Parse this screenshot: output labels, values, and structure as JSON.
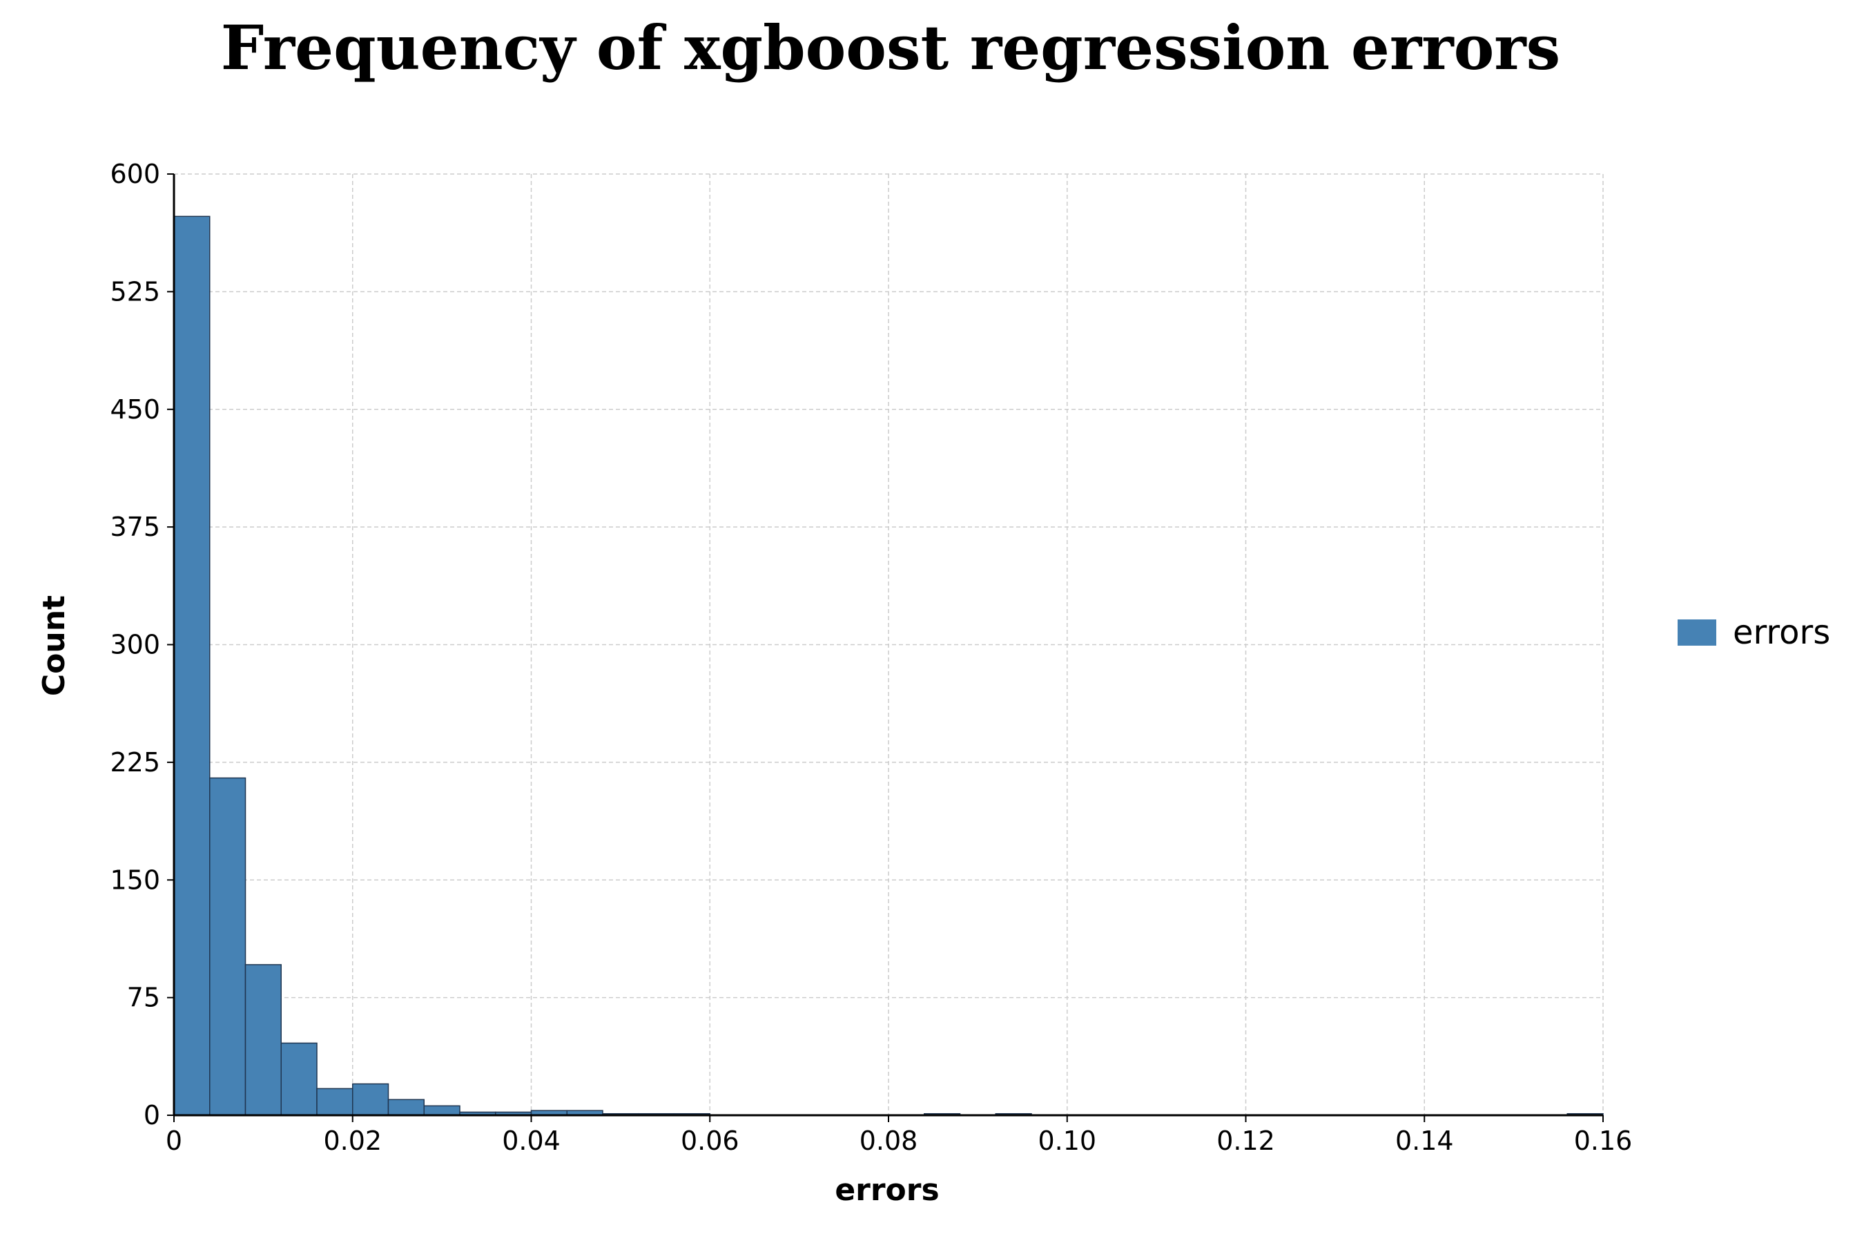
{
  "chart_data": {
    "type": "bar",
    "title": "Frequency of xgboost regression errors",
    "xlabel": "errors",
    "ylabel": "Count",
    "xlim": [
      0,
      0.16
    ],
    "ylim": [
      0,
      600
    ],
    "x_ticks": [
      "0",
      "0.02",
      "0.04",
      "0.06",
      "0.08",
      "0.10",
      "0.12",
      "0.14",
      "0.16"
    ],
    "x_tick_values": [
      0,
      0.02,
      0.04,
      0.06,
      0.08,
      0.1,
      0.12,
      0.14,
      0.16
    ],
    "y_ticks": [
      "0",
      "75",
      "150",
      "225",
      "300",
      "375",
      "450",
      "525",
      "600"
    ],
    "y_tick_values": [
      0,
      75,
      150,
      225,
      300,
      375,
      450,
      525,
      600
    ],
    "grid": true,
    "legend_position": "right",
    "bar_color": "#4682b4",
    "series": [
      {
        "name": "errors",
        "bin_width": 0.004,
        "bin_starts": [
          0,
          0.004,
          0.008,
          0.012,
          0.016,
          0.02,
          0.024,
          0.028,
          0.032,
          0.036,
          0.04,
          0.044,
          0.048,
          0.052,
          0.056,
          0.084,
          0.092,
          0.156
        ],
        "values": [
          573,
          215,
          96,
          46,
          17,
          20,
          10,
          6,
          2,
          2,
          3,
          3,
          1,
          1,
          1,
          1,
          1,
          1
        ]
      }
    ]
  }
}
